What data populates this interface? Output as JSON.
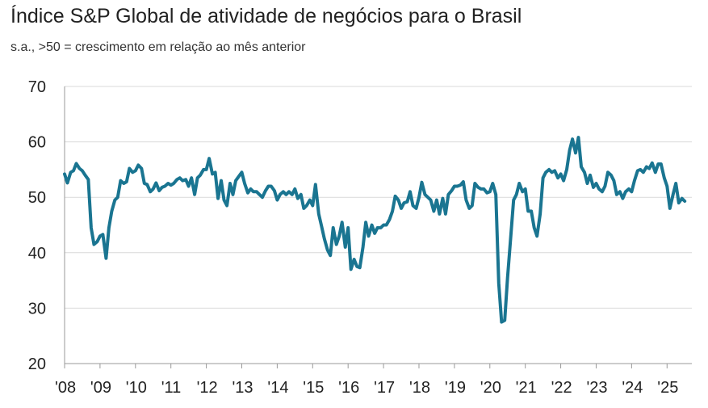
{
  "title": "Índice S&P Global de atividade de negócios para o Brasil",
  "subtitle": "s.a., >50 = crescimento em relação ao mês anterior",
  "colors": {
    "line": "#1a7591",
    "grid": "#d9d9d9",
    "axis": "#999999"
  },
  "chart_data": {
    "type": "line",
    "title": "Índice S&P Global de atividade de negócios para o Brasil",
    "subtitle": "s.a., >50 = crescimento em relação ao mês anterior",
    "xlabel": "",
    "ylabel": "",
    "ylim": [
      20,
      70
    ],
    "yticks": [
      20,
      30,
      40,
      50,
      60,
      70
    ],
    "xlim": [
      2008.0,
      2025.7
    ],
    "xtick_labels": [
      "'08",
      "'09",
      "'10",
      "'11",
      "'12",
      "'13",
      "'14",
      "'15",
      "'16",
      "'17",
      "'18",
      "'19",
      "'20",
      "'21",
      "'22",
      "'23",
      "'24",
      "'25"
    ],
    "xtick_values": [
      2008,
      2009,
      2010,
      2011,
      2012,
      2013,
      2014,
      2015,
      2016,
      2017,
      2018,
      2019,
      2020,
      2021,
      2022,
      2023,
      2024,
      2025
    ],
    "grid": "horizontal",
    "series": [
      {
        "points": [
          [
            2008.0,
            54.2
          ],
          [
            2008.08,
            52.6
          ],
          [
            2008.17,
            54.5
          ],
          [
            2008.25,
            54.8
          ],
          [
            2008.33,
            56.1
          ],
          [
            2008.42,
            55.2
          ],
          [
            2008.5,
            54.8
          ],
          [
            2008.58,
            54.0
          ],
          [
            2008.67,
            53.2
          ],
          [
            2008.75,
            44.5
          ],
          [
            2008.83,
            41.5
          ],
          [
            2008.92,
            42.0
          ],
          [
            2009.0,
            43.0
          ],
          [
            2009.08,
            43.3
          ],
          [
            2009.17,
            39.0
          ],
          [
            2009.25,
            44.5
          ],
          [
            2009.33,
            47.5
          ],
          [
            2009.42,
            49.5
          ],
          [
            2009.5,
            50.0
          ],
          [
            2009.58,
            53.0
          ],
          [
            2009.67,
            52.5
          ],
          [
            2009.75,
            52.8
          ],
          [
            2009.83,
            55.2
          ],
          [
            2009.92,
            54.5
          ],
          [
            2010.0,
            54.8
          ],
          [
            2010.08,
            55.8
          ],
          [
            2010.17,
            55.2
          ],
          [
            2010.25,
            52.5
          ],
          [
            2010.33,
            52.3
          ],
          [
            2010.42,
            51.0
          ],
          [
            2010.5,
            51.5
          ],
          [
            2010.58,
            52.6
          ],
          [
            2010.67,
            51.2
          ],
          [
            2010.75,
            51.8
          ],
          [
            2010.83,
            52.0
          ],
          [
            2010.92,
            52.5
          ],
          [
            2011.0,
            52.2
          ],
          [
            2011.08,
            52.5
          ],
          [
            2011.17,
            53.2
          ],
          [
            2011.25,
            53.5
          ],
          [
            2011.33,
            53.0
          ],
          [
            2011.42,
            53.2
          ],
          [
            2011.5,
            52.0
          ],
          [
            2011.58,
            53.5
          ],
          [
            2011.67,
            50.5
          ],
          [
            2011.75,
            53.5
          ],
          [
            2011.83,
            54.0
          ],
          [
            2011.92,
            55.0
          ],
          [
            2012.0,
            55.0
          ],
          [
            2012.08,
            57.0
          ],
          [
            2012.17,
            54.2
          ],
          [
            2012.25,
            54.5
          ],
          [
            2012.33,
            49.8
          ],
          [
            2012.42,
            53.0
          ],
          [
            2012.5,
            49.5
          ],
          [
            2012.58,
            48.5
          ],
          [
            2012.67,
            52.5
          ],
          [
            2012.75,
            50.5
          ],
          [
            2012.83,
            53.0
          ],
          [
            2012.92,
            53.8
          ],
          [
            2013.0,
            54.5
          ],
          [
            2013.08,
            52.5
          ],
          [
            2013.17,
            50.8
          ],
          [
            2013.25,
            51.5
          ],
          [
            2013.33,
            51.0
          ],
          [
            2013.42,
            51.0
          ],
          [
            2013.5,
            50.5
          ],
          [
            2013.58,
            50.0
          ],
          [
            2013.67,
            51.2
          ],
          [
            2013.75,
            52.0
          ],
          [
            2013.83,
            52.0
          ],
          [
            2013.92,
            51.2
          ],
          [
            2014.0,
            49.5
          ],
          [
            2014.08,
            50.5
          ],
          [
            2014.17,
            51.0
          ],
          [
            2014.25,
            50.5
          ],
          [
            2014.33,
            51.0
          ],
          [
            2014.42,
            50.5
          ],
          [
            2014.5,
            51.5
          ],
          [
            2014.58,
            49.8
          ],
          [
            2014.67,
            50.5
          ],
          [
            2014.75,
            48.0
          ],
          [
            2014.83,
            48.5
          ],
          [
            2014.92,
            49.5
          ],
          [
            2015.0,
            48.5
          ],
          [
            2015.08,
            52.3
          ],
          [
            2015.17,
            47.0
          ],
          [
            2015.25,
            44.8
          ],
          [
            2015.33,
            42.5
          ],
          [
            2015.42,
            40.5
          ],
          [
            2015.5,
            39.5
          ],
          [
            2015.58,
            44.5
          ],
          [
            2015.67,
            41.5
          ],
          [
            2015.75,
            43.0
          ],
          [
            2015.83,
            45.5
          ],
          [
            2015.92,
            41.0
          ],
          [
            2016.0,
            44.5
          ],
          [
            2016.08,
            37.0
          ],
          [
            2016.17,
            38.8
          ],
          [
            2016.25,
            37.5
          ],
          [
            2016.33,
            37.3
          ],
          [
            2016.42,
            41.0
          ],
          [
            2016.5,
            45.5
          ],
          [
            2016.58,
            43.0
          ],
          [
            2016.67,
            45.0
          ],
          [
            2016.75,
            43.5
          ],
          [
            2016.83,
            44.5
          ],
          [
            2016.92,
            44.5
          ],
          [
            2017.0,
            45.0
          ],
          [
            2017.08,
            45.0
          ],
          [
            2017.17,
            46.0
          ],
          [
            2017.25,
            47.5
          ],
          [
            2017.33,
            50.2
          ],
          [
            2017.42,
            49.5
          ],
          [
            2017.5,
            48.0
          ],
          [
            2017.58,
            49.0
          ],
          [
            2017.67,
            49.2
          ],
          [
            2017.75,
            51.0
          ],
          [
            2017.83,
            48.5
          ],
          [
            2017.92,
            48.0
          ],
          [
            2018.0,
            50.0
          ],
          [
            2018.08,
            52.7
          ],
          [
            2018.17,
            50.5
          ],
          [
            2018.25,
            50.0
          ],
          [
            2018.33,
            49.5
          ],
          [
            2018.42,
            47.5
          ],
          [
            2018.5,
            49.5
          ],
          [
            2018.58,
            47.0
          ],
          [
            2018.67,
            49.8
          ],
          [
            2018.75,
            47.0
          ],
          [
            2018.83,
            50.5
          ],
          [
            2018.92,
            51.2
          ],
          [
            2019.0,
            52.0
          ],
          [
            2019.08,
            52.0
          ],
          [
            2019.17,
            52.2
          ],
          [
            2019.25,
            52.8
          ],
          [
            2019.33,
            49.5
          ],
          [
            2019.42,
            48.0
          ],
          [
            2019.5,
            48.5
          ],
          [
            2019.58,
            52.5
          ],
          [
            2019.67,
            51.8
          ],
          [
            2019.75,
            51.5
          ],
          [
            2019.83,
            51.5
          ],
          [
            2019.92,
            50.8
          ],
          [
            2020.0,
            51.0
          ],
          [
            2020.08,
            52.5
          ],
          [
            2020.17,
            50.5
          ],
          [
            2020.25,
            34.5
          ],
          [
            2020.33,
            27.5
          ],
          [
            2020.42,
            27.8
          ],
          [
            2020.5,
            35.5
          ],
          [
            2020.58,
            42.0
          ],
          [
            2020.67,
            49.5
          ],
          [
            2020.75,
            50.5
          ],
          [
            2020.83,
            52.5
          ],
          [
            2020.92,
            51.0
          ],
          [
            2021.0,
            51.5
          ],
          [
            2021.08,
            47.5
          ],
          [
            2021.17,
            47.5
          ],
          [
            2021.25,
            44.5
          ],
          [
            2021.33,
            43.0
          ],
          [
            2021.42,
            47.0
          ],
          [
            2021.5,
            53.5
          ],
          [
            2021.58,
            54.5
          ],
          [
            2021.67,
            55.0
          ],
          [
            2021.75,
            54.5
          ],
          [
            2021.83,
            54.8
          ],
          [
            2021.92,
            53.5
          ],
          [
            2022.0,
            54.2
          ],
          [
            2022.08,
            53.0
          ],
          [
            2022.17,
            55.0
          ],
          [
            2022.25,
            58.5
          ],
          [
            2022.33,
            60.5
          ],
          [
            2022.42,
            58.0
          ],
          [
            2022.5,
            60.8
          ],
          [
            2022.58,
            55.5
          ],
          [
            2022.67,
            54.5
          ],
          [
            2022.75,
            52.5
          ],
          [
            2022.83,
            54.0
          ],
          [
            2022.92,
            51.8
          ],
          [
            2023.0,
            52.5
          ],
          [
            2023.08,
            51.5
          ],
          [
            2023.17,
            51.0
          ],
          [
            2023.25,
            52.0
          ],
          [
            2023.33,
            54.5
          ],
          [
            2023.42,
            54.0
          ],
          [
            2023.5,
            53.0
          ],
          [
            2023.58,
            50.5
          ],
          [
            2023.67,
            51.0
          ],
          [
            2023.75,
            49.8
          ],
          [
            2023.83,
            51.0
          ],
          [
            2023.92,
            51.5
          ],
          [
            2024.0,
            51.0
          ],
          [
            2024.08,
            53.0
          ],
          [
            2024.17,
            54.8
          ],
          [
            2024.25,
            55.0
          ],
          [
            2024.33,
            54.5
          ],
          [
            2024.42,
            55.5
          ],
          [
            2024.5,
            55.2
          ],
          [
            2024.58,
            56.2
          ],
          [
            2024.67,
            54.5
          ],
          [
            2024.75,
            56.0
          ],
          [
            2024.83,
            56.0
          ],
          [
            2024.92,
            53.5
          ],
          [
            2025.0,
            52.0
          ],
          [
            2025.08,
            48.0
          ],
          [
            2025.17,
            50.5
          ],
          [
            2025.25,
            52.5
          ],
          [
            2025.33,
            49.0
          ],
          [
            2025.42,
            49.8
          ],
          [
            2025.5,
            49.3
          ]
        ]
      }
    ]
  }
}
